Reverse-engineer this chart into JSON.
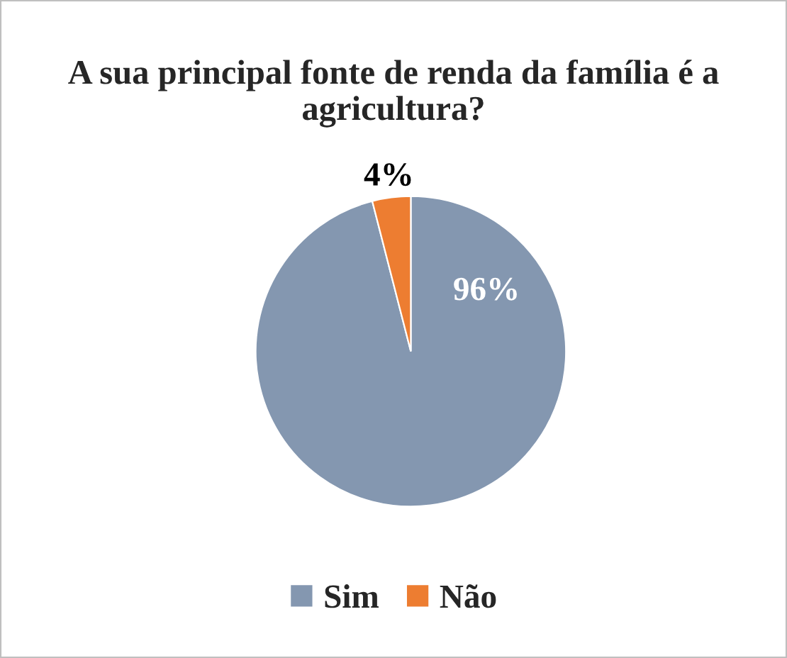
{
  "chart_data": {
    "type": "pie",
    "title": "A sua principal fonte de renda da família é a agricultura?",
    "categories": [
      "Sim",
      "Não"
    ],
    "values": [
      96,
      4
    ],
    "colors": [
      "#8497b0",
      "#ed7d31"
    ],
    "value_labels": [
      "96%",
      "4%"
    ],
    "legend": "bottom"
  }
}
